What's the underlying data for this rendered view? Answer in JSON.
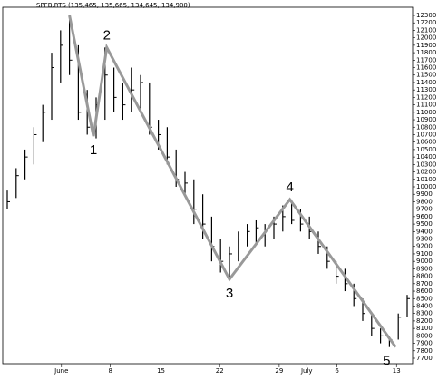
{
  "chart_data": {
    "type": "ohlc",
    "title": "SPFB.RTS (135,465, 135,665, 134,645, 134,900)",
    "high": [
      9950,
      10250,
      10500,
      10800,
      11100,
      11800,
      12100,
      12300,
      11900,
      11300,
      11200,
      11870,
      11600,
      11400,
      11600,
      11500,
      11400,
      10900,
      10800,
      10500,
      10200,
      10100,
      9900,
      9600,
      9300,
      9200,
      9400,
      9500,
      9550,
      9500,
      9600,
      9750,
      9830,
      9700,
      9600,
      9400,
      9200,
      9000,
      8900,
      8700,
      8500,
      8300,
      8100,
      8000,
      8300,
      8550
    ],
    "low": [
      9700,
      9850,
      10100,
      10300,
      10600,
      10900,
      11400,
      11500,
      10900,
      10700,
      10650,
      10900,
      11000,
      10900,
      11000,
      11050,
      10700,
      10500,
      10300,
      10000,
      9900,
      9500,
      9300,
      9000,
      8850,
      8760,
      9000,
      9200,
      9250,
      9200,
      9300,
      9400,
      9500,
      9400,
      9300,
      9100,
      8900,
      8700,
      8600,
      8400,
      8200,
      8000,
      7900,
      7850,
      7950,
      8250
    ],
    "close": [
      9800,
      10150,
      10400,
      10700,
      11000,
      11600,
      11900,
      11700,
      11000,
      10800,
      11100,
      11500,
      11200,
      11100,
      11300,
      11400,
      10800,
      10700,
      10400,
      10100,
      10050,
      9700,
      9500,
      9200,
      9000,
      9100,
      9300,
      9400,
      9450,
      9300,
      9500,
      9600,
      9550,
      9500,
      9400,
      9200,
      9000,
      8800,
      8700,
      8500,
      8300,
      8100,
      8000,
      7950,
      8250,
      8500
    ],
    "color": "#000000",
    "wave": {
      "x": [
        7,
        9.7,
        11.2,
        25,
        31.8,
        43.7
      ],
      "values": [
        12300,
        10680,
        11870,
        8760,
        9830,
        7850
      ],
      "labels": [
        null,
        "1",
        "2",
        "3",
        "4",
        "5"
      ],
      "color": "#999999"
    },
    "xlim": [
      0,
      45
    ],
    "xticks": [
      {
        "value": 6.1,
        "label": "June"
      },
      {
        "value": 11.6,
        "label": "8"
      },
      {
        "value": 17.3,
        "label": "15"
      },
      {
        "value": 23.9,
        "label": "22"
      },
      {
        "value": 30.6,
        "label": "29"
      },
      {
        "value": 33.7,
        "label": "July"
      },
      {
        "value": 37.1,
        "label": "6"
      },
      {
        "value": 43.8,
        "label": "13"
      }
    ],
    "ylim": [
      7700,
      12300
    ],
    "yticks": [
      7700,
      7800,
      7900,
      8000,
      8100,
      8200,
      8300,
      8400,
      8500,
      8600,
      8700,
      8800,
      8900,
      9000,
      9100,
      9200,
      9300,
      9400,
      9500,
      9600,
      9700,
      9800,
      9900,
      10000,
      10100,
      10200,
      10300,
      10400,
      10500,
      10600,
      10700,
      10800,
      10900,
      11000,
      11100,
      11200,
      11300,
      11400,
      11500,
      11600,
      11700,
      11800,
      11900,
      12000,
      12100,
      12200,
      12300
    ]
  }
}
